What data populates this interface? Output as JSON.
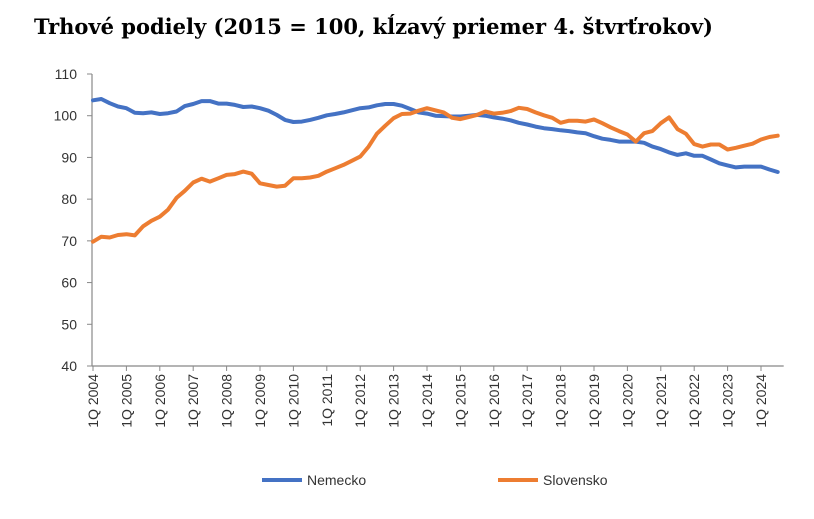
{
  "chart_data": {
    "type": "line",
    "title": "Trhové podiely (2015 = 100, kĺzavý priemer 4. štvrťrokov)",
    "xlabel": "",
    "ylabel": "",
    "ylim": [
      40,
      110
    ],
    "yticks": [
      "40",
      "50",
      "60",
      "70",
      "80",
      "90",
      "100",
      "110"
    ],
    "x_start": "1Q 2004",
    "x_end": "3Q 2024",
    "xtick_labels": [
      "1Q 2004",
      "1Q 2005",
      "1Q 2006",
      "1Q 2007",
      "1Q 2008",
      "1Q 2009",
      "1Q 2010",
      "1Q 2011",
      "1Q 2012",
      "1Q 2013",
      "1Q 2014",
      "1Q 2015",
      "1Q 2016",
      "1Q 2017",
      "1Q 2018",
      "1Q 2019",
      "1Q 2020",
      "1Q 2021",
      "1Q 2022",
      "1Q 2023",
      "1Q 2024"
    ],
    "grid": false,
    "legend": "bottom",
    "series": [
      {
        "name": "Nemecko",
        "color": "#4472C4",
        "values": [
          103.7,
          104,
          103,
          102.2,
          101.8,
          100.7,
          100.6,
          100.8,
          100.4,
          100.6,
          101,
          102.3,
          102.8,
          103.5,
          103.5,
          102.9,
          102.9,
          102.6,
          102.1,
          102.2,
          101.8,
          101.2,
          100.2,
          99,
          98.5,
          98.6,
          99,
          99.5,
          100.1,
          100.4,
          100.8,
          101.3,
          101.8,
          102,
          102.5,
          102.8,
          102.8,
          102.4,
          101.6,
          100.8,
          100.5,
          100,
          99.9,
          99.8,
          99.8,
          100,
          100.2,
          100,
          99.6,
          99.3,
          98.9,
          98.3,
          97.9,
          97.4,
          97,
          96.8,
          96.5,
          96.3,
          96,
          95.8,
          95.1,
          94.5,
          94.2,
          93.8,
          93.8,
          93.8,
          93.5,
          92.6,
          92,
          91.2,
          90.6,
          91,
          90.4,
          90.4,
          89.5,
          88.6,
          88.1,
          87.6,
          87.8,
          87.8,
          87.8,
          87.1,
          86.5
        ]
      },
      {
        "name": "Slovensko",
        "color": "#ED7D31",
        "values": [
          69.8,
          71,
          70.8,
          71.4,
          71.6,
          71.3,
          73.5,
          74.8,
          75.8,
          77.5,
          80.3,
          82,
          84,
          84.9,
          84.2,
          85,
          85.8,
          86,
          86.6,
          86.1,
          83.8,
          83.4,
          83,
          83.2,
          85,
          85,
          85.2,
          85.6,
          86.6,
          87.4,
          88.2,
          89.2,
          90.2,
          92.6,
          95.7,
          97.6,
          99.4,
          100.4,
          100.5,
          101.2,
          101.8,
          101.3,
          100.8,
          99.5,
          99.2,
          99.7,
          100.2,
          101,
          100.5,
          100.7,
          101.1,
          101.9,
          101.6,
          100.8,
          100.1,
          99.5,
          98.3,
          98.8,
          98.8,
          98.6,
          99.1,
          98.2,
          97.2,
          96.3,
          95.5,
          93.8,
          95.8,
          96.3,
          98.2,
          99.6,
          96.8,
          95.7,
          93.2,
          92.6,
          93.1,
          93.1,
          91.9,
          92.3,
          92.8,
          93.3,
          94.3,
          94.9,
          95.2
        ]
      }
    ]
  }
}
